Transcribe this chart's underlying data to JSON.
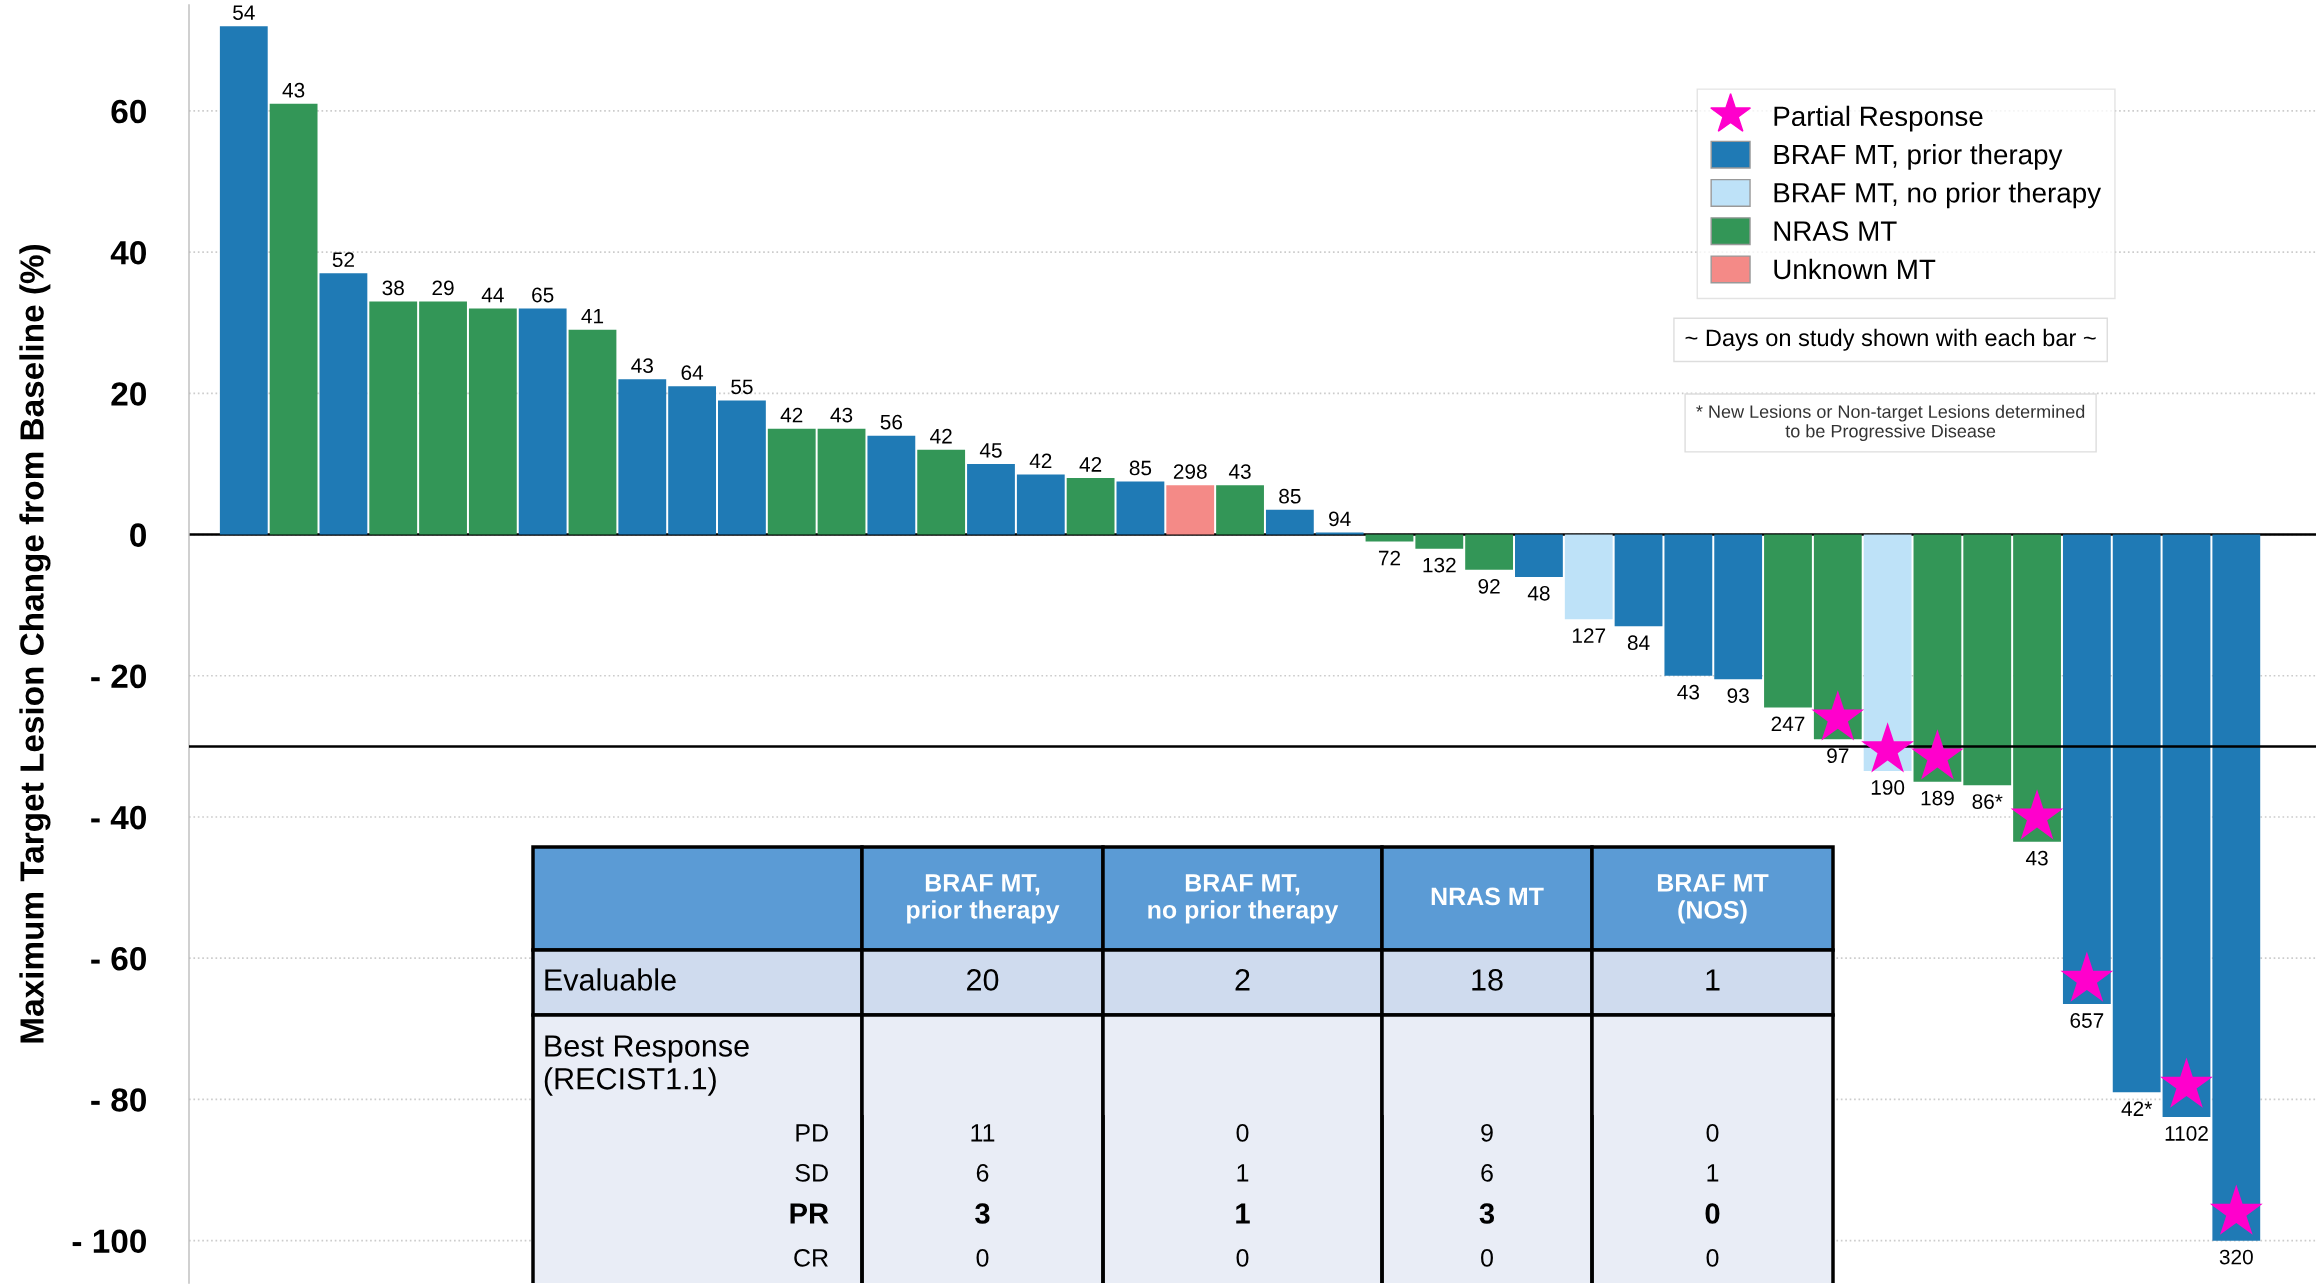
{
  "chart_data": {
    "type": "bar",
    "ylabel": "Maximum Target Lesion Change from Baseline (%)",
    "categories": [
      "54",
      "43",
      "52",
      "38",
      "29",
      "44",
      "65",
      "41",
      "43",
      "64",
      "55",
      "42",
      "43",
      "56",
      "42",
      "45",
      "42",
      "42",
      "85",
      "298",
      "43",
      "85",
      "94",
      "72",
      "132",
      "92",
      "48",
      "127",
      "84",
      "43",
      "93",
      "247",
      "97",
      "190",
      "189",
      "86*",
      "43",
      "657",
      "42*",
      "1102",
      "320"
    ],
    "series": [
      {
        "name": "Partial Response",
        "type": "scatter",
        "marker": "star",
        "color": "#ff00cc",
        "values": [
          null,
          null,
          null,
          null,
          null,
          null,
          null,
          null,
          null,
          null,
          null,
          null,
          null,
          null,
          null,
          null,
          null,
          null,
          null,
          null,
          null,
          null,
          null,
          null,
          null,
          null,
          null,
          null,
          null,
          null,
          null,
          null,
          -26,
          -30.5,
          -31.5,
          null,
          -40,
          -63,
          null,
          -78,
          -96
        ]
      },
      {
        "name": "BRAF MT, prior therapy",
        "color": "#1f7ab5",
        "values": [
          72,
          null,
          37,
          null,
          null,
          null,
          32,
          null,
          22,
          21,
          19,
          null,
          null,
          14,
          null,
          10,
          8.5,
          null,
          7.5,
          null,
          null,
          3.5,
          0.3,
          null,
          null,
          null,
          -6,
          null,
          -13,
          -20,
          -20.5,
          null,
          null,
          null,
          null,
          null,
          null,
          -66.5,
          -79,
          -82.5,
          -100
        ]
      },
      {
        "name": "BRAF MT, no prior therapy",
        "color": "#bee2f8",
        "values": [
          null,
          null,
          null,
          null,
          null,
          null,
          null,
          null,
          null,
          null,
          null,
          null,
          null,
          null,
          null,
          null,
          null,
          null,
          null,
          null,
          null,
          null,
          null,
          null,
          null,
          null,
          null,
          -12,
          null,
          null,
          null,
          null,
          null,
          -33.5,
          null,
          null,
          null,
          null,
          null,
          null,
          null
        ]
      },
      {
        "name": "NRAS MT",
        "color": "#339657",
        "values": [
          null,
          61,
          null,
          33,
          33,
          32,
          null,
          29,
          null,
          null,
          null,
          15,
          15,
          null,
          12,
          null,
          null,
          8,
          null,
          null,
          7,
          null,
          null,
          -1,
          -2,
          -5,
          null,
          null,
          null,
          null,
          null,
          -24.5,
          -29,
          null,
          -35,
          -35.5,
          -43.5,
          null,
          null,
          null,
          null
        ]
      },
      {
        "name": "Unknown MT",
        "color": "#f48a87",
        "values": [
          null,
          null,
          null,
          null,
          null,
          null,
          null,
          null,
          null,
          null,
          null,
          null,
          null,
          null,
          null,
          null,
          null,
          null,
          null,
          7,
          null,
          null,
          null,
          null,
          null,
          null,
          null,
          null,
          null,
          null,
          null,
          null,
          null,
          null,
          null,
          null,
          null,
          null,
          null,
          null,
          null
        ]
      }
    ],
    "ylim": [
      -106,
      75
    ],
    "yticks": [
      60,
      40,
      20,
      0,
      {
        "value": -20,
        "label": "- 20"
      },
      {
        "value": -40,
        "label": "- 40"
      },
      {
        "value": -60,
        "label": "- 60"
      },
      {
        "value": -80,
        "label": "- 80"
      },
      {
        "value": -100,
        "label": "- 100"
      }
    ],
    "grid": "y",
    "legend": "top right",
    "ref_lines": [
      {
        "axis": "y",
        "value": 0,
        "color": "#000000"
      },
      {
        "axis": "y",
        "value": -30,
        "color": "#000000"
      }
    ],
    "annotations": [
      "~ Days on study shown with each bar ~",
      "* New Lesions or Non-target Lesions determined\nto be Progressive Disease",
      "BRAF MT,\nprior therapy",
      "BRAF MT,\nno prior therapy",
      "NRAS MT",
      "BRAF MT\n(NOS)",
      "Evaluable",
      "20",
      "2",
      "18",
      "1",
      "Best Response\n(RECIST1.1)",
      "PD",
      "11",
      "0",
      "9",
      "0",
      "SD",
      "6",
      "1",
      "6",
      "1",
      "PR",
      "3",
      "1",
      "3",
      "0",
      "CR",
      "0",
      "0",
      "0",
      "0"
    ]
  }
}
